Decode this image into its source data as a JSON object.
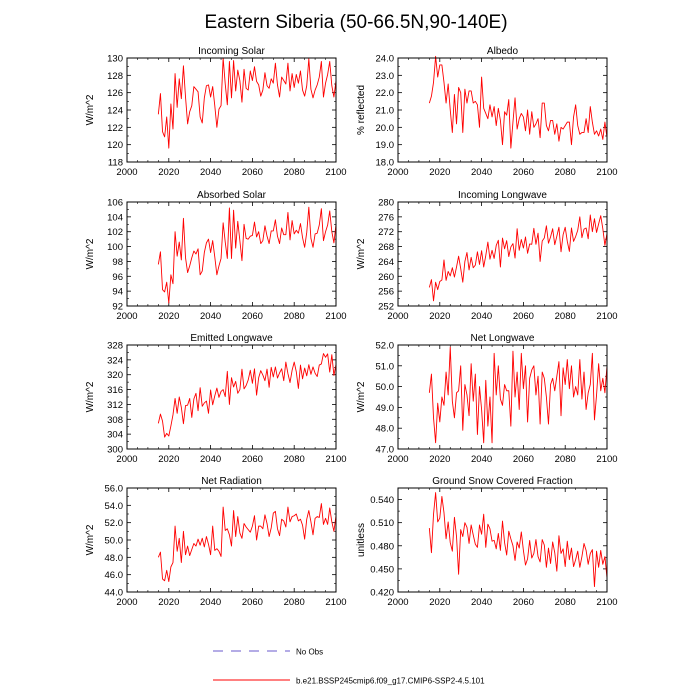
{
  "figure_title": "Eastern Siberia (50-66.5N,90-140E)",
  "legend": {
    "obs_label": "No Obs",
    "model_label": "b.e21.BSSP245cmip6.f09_g17.CMIP6-SSP2-4.5.101",
    "obs_color": "#6a5acd",
    "model_color": "#ff0000"
  },
  "chart_data": [
    {
      "type": "line",
      "title": "Incoming Solar",
      "xlabel": "",
      "ylabel": "W/m^2",
      "xlim": [
        2000,
        2100
      ],
      "ylim": [
        118,
        130
      ],
      "xticks": [
        2000,
        2020,
        2040,
        2060,
        2080,
        2100
      ],
      "yticks": [
        118,
        120,
        122,
        124,
        126,
        128,
        130
      ],
      "ytick_labels": [
        "118",
        "120",
        "122",
        "124",
        "126",
        "128",
        "130"
      ],
      "series": [
        {
          "name": "b.e21.BSSP245cmip6.f09_g17.CMIP6-SSP2-4.5.101",
          "x_start": 2015,
          "values": [
            123.5,
            125.9,
            121.5,
            120.9,
            123.2,
            119.6,
            124.7,
            121.8,
            128.2,
            124.3,
            127.6,
            125.3,
            129.1,
            125.5,
            122.4,
            123.8,
            124.5,
            126.7,
            126.4,
            126.1,
            123.2,
            122.5,
            125.4,
            126.8,
            126.9,
            125.5,
            126.7,
            124.5,
            122.0,
            124.1,
            124.5,
            130.0,
            127.0,
            124.6,
            129.6,
            125.4,
            129.7,
            126.2,
            128.6,
            127.4,
            124.9,
            128.7,
            126.5,
            126.3,
            128.5,
            127.4,
            129.0,
            127.3,
            126.9,
            125.6,
            126.3,
            128.3,
            126.8,
            126.5,
            127.6,
            127.1,
            129.4,
            126.9,
            125.5,
            127.8,
            127.4,
            127.0,
            129.4,
            126.2,
            128.2,
            126.6,
            128.1,
            127.1,
            128.5,
            126.3,
            125.6,
            126.8,
            129.9,
            126.4,
            125.4,
            126.3,
            126.9,
            127.8,
            129.6,
            125.5,
            127.1,
            128.1,
            129.6,
            126.8,
            125.5,
            127.4
          ]
        }
      ]
    },
    {
      "type": "line",
      "title": "Albedo",
      "xlabel": "",
      "ylabel": "% reflected",
      "xlim": [
        2000,
        2100
      ],
      "ylim": [
        18,
        24
      ],
      "xticks": [
        2000,
        2020,
        2040,
        2060,
        2080,
        2100
      ],
      "yticks": [
        18,
        19,
        20,
        21,
        22,
        23,
        24
      ],
      "ytick_labels": [
        "18.0",
        "19.0",
        "20.0",
        "21.0",
        "22.0",
        "23.0",
        "24.0"
      ],
      "series": [
        {
          "name": "b.e21.BSSP245cmip6.f09_g17.CMIP6-SSP2-4.5.101",
          "x_start": 2015,
          "values": [
            21.4,
            21.8,
            22.6,
            24.1,
            22.9,
            23.6,
            23.6,
            22.6,
            21.4,
            22.5,
            21.0,
            19.7,
            21.9,
            20.2,
            22.3,
            22.0,
            19.7,
            22.2,
            21.4,
            22.1,
            22.1,
            21.4,
            21.5,
            21.3,
            20.0,
            22.9,
            21.1,
            20.8,
            20.5,
            21.3,
            20.6,
            21.2,
            20.1,
            21.1,
            20.4,
            19.0,
            20.9,
            20.7,
            21.6,
            18.8,
            20.3,
            21.7,
            19.9,
            20.5,
            20.8,
            20.6,
            19.8,
            21.0,
            19.6,
            20.9,
            20.0,
            20.2,
            20.5,
            19.4,
            21.4,
            21.4,
            20.1,
            19.8,
            20.4,
            20.4,
            19.6,
            20.2,
            19.2,
            20.0,
            19.9,
            20.1,
            20.3,
            20.3,
            19.0,
            20.6,
            21.3,
            20.1,
            19.6,
            19.7,
            19.7,
            20.5,
            19.7,
            21.2,
            20.3,
            19.6,
            19.8,
            19.5,
            19.9,
            19.3,
            20.3,
            19.4
          ]
        }
      ]
    },
    {
      "type": "line",
      "title": "Absorbed Solar",
      "xlabel": "",
      "ylabel": "W/m^2",
      "xlim": [
        2000,
        2100
      ],
      "ylim": [
        92,
        106
      ],
      "xticks": [
        2000,
        2020,
        2040,
        2060,
        2080,
        2100
      ],
      "yticks": [
        92,
        94,
        96,
        98,
        100,
        102,
        104,
        106
      ],
      "ytick_labels": [
        "92",
        "94",
        "96",
        "98",
        "100",
        "102",
        "104",
        "106"
      ],
      "series": [
        {
          "name": "b.e21.BSSP245cmip6.f09_g17.CMIP6-SSP2-4.5.101",
          "x_start": 2015,
          "values": [
            97.6,
            99.3,
            94.2,
            93.9,
            95.2,
            92.4,
            96.2,
            95.0,
            102.0,
            98.7,
            100.6,
            98.2,
            103.8,
            98.5,
            96.5,
            97.4,
            98.5,
            99.4,
            99.0,
            99.7,
            96.2,
            96.7,
            99.2,
            100.5,
            101.0,
            99.2,
            100.8,
            98.6,
            96.2,
            97.4,
            98.4,
            103.2,
            100.6,
            98.4,
            105.2,
            98.4,
            104.9,
            99.8,
            103.4,
            100.8,
            98.1,
            103.0,
            101.1,
            101.0,
            101.4,
            101.5,
            103.3,
            101.3,
            102.0,
            100.4,
            100.8,
            102.8,
            101.4,
            100.4,
            102.1,
            102.1,
            103.6,
            101.4,
            100.4,
            102.5,
            101.6,
            101.6,
            104.6,
            100.9,
            103.5,
            101.7,
            102.2,
            101.8,
            103.1,
            101.2,
            99.9,
            101.9,
            105.3,
            101.1,
            99.9,
            101.7,
            101.8,
            102.9,
            105.1,
            100.8,
            102.0,
            102.9,
            104.8,
            102.0,
            100.5,
            103.0
          ]
        }
      ]
    },
    {
      "type": "line",
      "title": "Incoming Longwave",
      "xlabel": "",
      "ylabel": "W/m^2",
      "xlim": [
        2000,
        2100
      ],
      "ylim": [
        252,
        280
      ],
      "xticks": [
        2000,
        2020,
        2040,
        2060,
        2080,
        2100
      ],
      "yticks": [
        252,
        256,
        260,
        264,
        268,
        272,
        276,
        280
      ],
      "ytick_labels": [
        "252",
        "256",
        "260",
        "264",
        "268",
        "272",
        "276",
        "280"
      ],
      "series": [
        {
          "name": "b.e21.BSSP245cmip6.f09_g17.CMIP6-SSP2-4.5.101",
          "x_start": 2015,
          "values": [
            257.0,
            259.1,
            253.4,
            258.4,
            256.4,
            258.6,
            259.0,
            264.4,
            258.9,
            261.3,
            260.1,
            262.3,
            259.8,
            262.5,
            265.4,
            262.1,
            258.4,
            264.0,
            266.4,
            261.7,
            265.1,
            262.3,
            263.0,
            266.6,
            263.2,
            266.9,
            262.5,
            265.6,
            269.2,
            264.6,
            267.0,
            264.8,
            268.3,
            269.7,
            262.5,
            270.3,
            267.4,
            269.6,
            265.3,
            267.9,
            268.8,
            264.9,
            272.8,
            267.0,
            269.9,
            267.6,
            270.6,
            266.2,
            268.7,
            268.6,
            272.9,
            268.6,
            271.6,
            264.0,
            269.5,
            270.3,
            273.6,
            268.9,
            270.6,
            272.8,
            268.5,
            270.8,
            273.2,
            266.6,
            271.2,
            273.2,
            269.4,
            266.7,
            273.0,
            269.4,
            270.7,
            272.4,
            276.0,
            270.4,
            272.7,
            273.0,
            270.1,
            276.5,
            272.0,
            275.5,
            271.8,
            274.1,
            276.3,
            272.8,
            268.3,
            271.6
          ]
        }
      ]
    },
    {
      "type": "line",
      "title": "Emitted Longwave",
      "xlabel": "",
      "ylabel": "W/m^2",
      "xlim": [
        2000,
        2100
      ],
      "ylim": [
        300,
        328
      ],
      "xticks": [
        2000,
        2020,
        2040,
        2060,
        2080,
        2100
      ],
      "yticks": [
        300,
        304,
        308,
        312,
        316,
        320,
        324,
        328
      ],
      "ytick_labels": [
        "300",
        "304",
        "308",
        "312",
        "316",
        "320",
        "324",
        "328"
      ],
      "series": [
        {
          "name": "b.e21.BSSP245cmip6.f09_g17.CMIP6-SSP2-4.5.101",
          "x_start": 2015,
          "values": [
            306.9,
            309.4,
            307.5,
            303.2,
            304.2,
            303.5,
            306.2,
            309.2,
            313.6,
            309.6,
            314.0,
            311.2,
            306.8,
            311.7,
            311.8,
            313.6,
            308.5,
            313.5,
            315.0,
            310.3,
            316.5,
            311.5,
            312.4,
            312.9,
            309.6,
            315.9,
            311.9,
            314.3,
            316.4,
            313.9,
            315.5,
            316.0,
            314.1,
            320.9,
            312.0,
            319.2,
            316.7,
            318.2,
            315.0,
            316.0,
            321.5,
            316.2,
            317.1,
            318.6,
            321.2,
            317.7,
            321.6,
            314.5,
            319.2,
            321.1,
            319.9,
            318.4,
            321.5,
            316.6,
            322.0,
            319.4,
            322.1,
            319.1,
            320.5,
            321.6,
            318.4,
            323.4,
            320.3,
            317.9,
            321.2,
            323.4,
            320.8,
            316.3,
            322.6,
            318.9,
            321.8,
            319.7,
            322.7,
            320.1,
            322.1,
            320.4,
            319.5,
            322.6,
            322.9,
            325.7,
            324.7,
            325.6,
            320.7,
            325.4,
            319.8,
            322.8
          ]
        }
      ]
    },
    {
      "type": "line",
      "title": "Net Longwave",
      "xlabel": "",
      "ylabel": "W/m^2",
      "xlim": [
        2000,
        2100
      ],
      "ylim": [
        47,
        52
      ],
      "xticks": [
        2000,
        2020,
        2040,
        2060,
        2080,
        2100
      ],
      "yticks": [
        47,
        48,
        49,
        50,
        51,
        52
      ],
      "ytick_labels": [
        "47.0",
        "48.0",
        "49.0",
        "50.0",
        "51.0",
        "52.0"
      ],
      "series": [
        {
          "name": "b.e21.BSSP245cmip6.f09_g17.CMIP6-SSP2-4.5.101",
          "x_start": 2015,
          "values": [
            49.7,
            50.6,
            48.5,
            47.3,
            49.2,
            48.3,
            49.5,
            49.1,
            50.7,
            49.6,
            51.9,
            49.3,
            48.5,
            49.7,
            49.8,
            51.0,
            47.9,
            50.1,
            49.6,
            48.6,
            51.1,
            49.3,
            50.6,
            47.7,
            50.0,
            48.9,
            47.3,
            50.3,
            48.1,
            49.5,
            47.3,
            51.6,
            49.6,
            51.0,
            49.4,
            49.1,
            50.1,
            49.8,
            49.8,
            48.1,
            51.7,
            49.5,
            50.7,
            48.9,
            51.6,
            49.9,
            51.0,
            48.3,
            50.4,
            50.8,
            51.0,
            49.6,
            50.5,
            48.2,
            50.7,
            50.4,
            49.5,
            48.2,
            50.1,
            50.4,
            49.8,
            50.5,
            51.2,
            48.6,
            50.9,
            50.1,
            51.3,
            49.9,
            51.0,
            49.5,
            50.0,
            49.6,
            51.3,
            49.4,
            50.7,
            48.9,
            49.7,
            50.1,
            51.6,
            48.4,
            49.6,
            51.1,
            49.8,
            50.4,
            49.7,
            51.0
          ]
        }
      ]
    },
    {
      "type": "line",
      "title": "Net Radiation",
      "xlabel": "",
      "ylabel": "W/m^2",
      "xlim": [
        2000,
        2100
      ],
      "ylim": [
        44,
        56
      ],
      "xticks": [
        2000,
        2020,
        2040,
        2060,
        2080,
        2100
      ],
      "yticks": [
        44,
        46,
        48,
        50,
        52,
        54,
        56
      ],
      "ytick_labels": [
        "44.0",
        "46.0",
        "48.0",
        "50.0",
        "52.0",
        "54.0",
        "56.0"
      ],
      "series": [
        {
          "name": "b.e21.BSSP245cmip6.f09_g17.CMIP6-SSP2-4.5.101",
          "x_start": 2015,
          "values": [
            48.0,
            48.6,
            45.5,
            45.3,
            46.5,
            45.2,
            46.9,
            47.4,
            51.6,
            48.7,
            50.2,
            47.4,
            51.0,
            48.3,
            49.3,
            48.2,
            48.9,
            49.6,
            49.3,
            50.1,
            49.4,
            50.2,
            49.2,
            50.4,
            49.5,
            48.3,
            51.6,
            48.8,
            49.0,
            48.7,
            48.1,
            53.8,
            51.1,
            51.3,
            50.6,
            49.3,
            53.4,
            50.4,
            52.7,
            50.8,
            50.2,
            51.9,
            51.5,
            51.2,
            50.9,
            51.6,
            52.8,
            50.0,
            51.6,
            51.6,
            51.3,
            52.9,
            51.9,
            50.4,
            51.4,
            53.1,
            53.3,
            51.3,
            50.5,
            52.4,
            52.2,
            51.5,
            53.8,
            52.1,
            52.7,
            52.8,
            53.0,
            52.2,
            52.4,
            51.7,
            50.1,
            52.4,
            53.4,
            52.1,
            50.6,
            52.5,
            52.7,
            52.6,
            54.2,
            51.8,
            52.5,
            51.8,
            53.7,
            52.1,
            51.0,
            52.8
          ]
        }
      ]
    },
    {
      "type": "line",
      "title": "Ground Snow Covered Fraction",
      "xlabel": "",
      "ylabel": "unitless",
      "xlim": [
        2000,
        2100
      ],
      "ylim": [
        0.42,
        0.555
      ],
      "xticks": [
        2000,
        2020,
        2040,
        2060,
        2080,
        2100
      ],
      "yticks": [
        0.42,
        0.45,
        0.48,
        0.51,
        0.54
      ],
      "ytick_labels": [
        "0.420",
        "0.450",
        "0.480",
        "0.510",
        "0.540"
      ],
      "series": [
        {
          "name": "b.e21.BSSP245cmip6.f09_g17.CMIP6-SSP2-4.5.101",
          "x_start": 2015,
          "values": [
            0.503,
            0.471,
            0.521,
            0.549,
            0.511,
            0.516,
            0.544,
            0.523,
            0.489,
            0.511,
            0.484,
            0.473,
            0.517,
            0.492,
            0.443,
            0.501,
            0.492,
            0.51,
            0.504,
            0.483,
            0.507,
            0.494,
            0.482,
            0.478,
            0.507,
            0.495,
            0.521,
            0.478,
            0.508,
            0.502,
            0.486,
            0.487,
            0.476,
            0.496,
            0.474,
            0.512,
            0.484,
            0.468,
            0.499,
            0.489,
            0.48,
            0.461,
            0.485,
            0.477,
            0.498,
            0.474,
            0.455,
            0.463,
            0.487,
            0.464,
            0.47,
            0.488,
            0.466,
            0.459,
            0.488,
            0.481,
            0.452,
            0.477,
            0.457,
            0.485,
            0.471,
            0.447,
            0.493,
            0.47,
            0.476,
            0.453,
            0.486,
            0.462,
            0.477,
            0.453,
            0.462,
            0.473,
            0.452,
            0.466,
            0.483,
            0.474,
            0.456,
            0.47,
            0.475,
            0.427,
            0.473,
            0.452,
            0.474,
            0.456,
            0.466,
            0.438
          ]
        }
      ]
    }
  ]
}
